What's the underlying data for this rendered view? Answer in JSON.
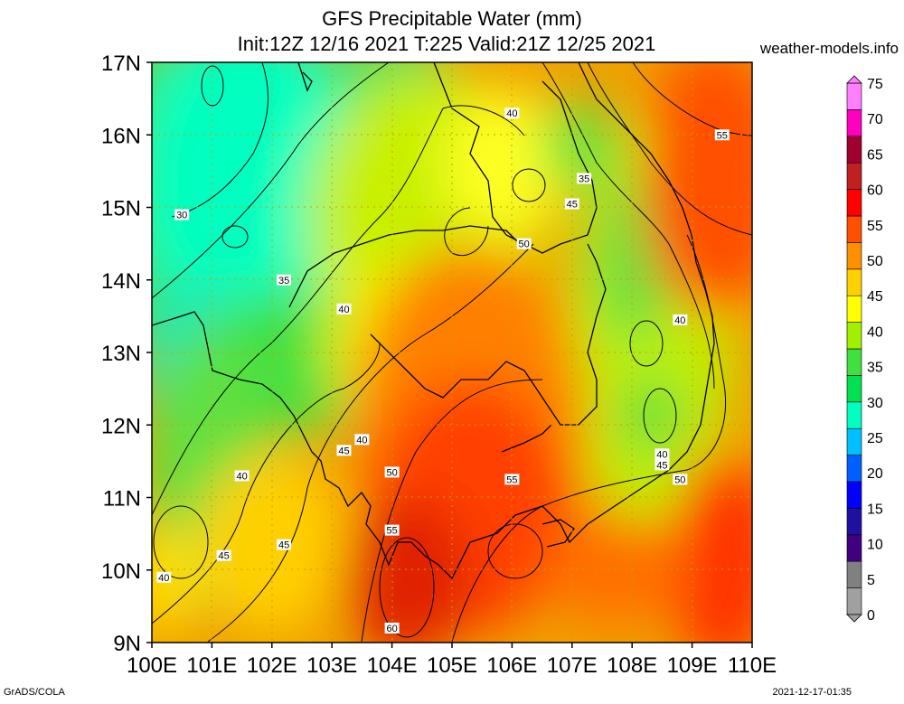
{
  "title": "GFS Precipitable Water (mm)",
  "subtitle": "Init:12Z 12/16 2021 T:225 Valid:21Z 12/25 2021",
  "source": "weather-models.info",
  "footer_left": "GrADS/COLA",
  "footer_right": "2021-12-17-01:35",
  "chart_data": {
    "type": "heatmap",
    "title": "GFS Precipitable Water (mm)",
    "x_ticks": [
      "100E",
      "101E",
      "102E",
      "103E",
      "104E",
      "105E",
      "106E",
      "107E",
      "108E",
      "109E",
      "110E"
    ],
    "y_ticks": [
      "9N",
      "10N",
      "11N",
      "12N",
      "13N",
      "14N",
      "15N",
      "16N",
      "17N"
    ],
    "xlim": [
      100,
      110
    ],
    "ylim": [
      9,
      17
    ],
    "colorbar": {
      "ticks": [
        0,
        5,
        10,
        15,
        20,
        25,
        30,
        35,
        40,
        45,
        50,
        55,
        60,
        65,
        70,
        75
      ],
      "colors": [
        "#a0a0a0",
        "#808080",
        "#400080",
        "#2010a0",
        "#0000ff",
        "#0060ff",
        "#00c0ff",
        "#00ffc0",
        "#00e050",
        "#40e040",
        "#a0f000",
        "#ffff00",
        "#ffd000",
        "#ff9000",
        "#ff5000",
        "#ff0000",
        "#c02020",
        "#a00030",
        "#ff00c0",
        "#ff80ff"
      ]
    },
    "contour_labels": [
      {
        "v": "40",
        "lon": 106.0,
        "lat": 16.3
      },
      {
        "v": "55",
        "lon": 109.5,
        "lat": 16.0
      },
      {
        "v": "35",
        "lon": 107.2,
        "lat": 15.4
      },
      {
        "v": "45",
        "lon": 107.0,
        "lat": 15.05
      },
      {
        "v": "30",
        "lon": 100.5,
        "lat": 14.9
      },
      {
        "v": "50",
        "lon": 106.2,
        "lat": 14.5
      },
      {
        "v": "35",
        "lon": 102.2,
        "lat": 14.0
      },
      {
        "v": "40",
        "lon": 103.2,
        "lat": 13.6
      },
      {
        "v": "40",
        "lon": 108.8,
        "lat": 13.45
      },
      {
        "v": "40",
        "lon": 103.5,
        "lat": 11.8
      },
      {
        "v": "45",
        "lon": 103.2,
        "lat": 11.65
      },
      {
        "v": "40",
        "lon": 108.5,
        "lat": 11.6
      },
      {
        "v": "45",
        "lon": 108.5,
        "lat": 11.45
      },
      {
        "v": "50",
        "lon": 104.0,
        "lat": 11.35
      },
      {
        "v": "50",
        "lon": 108.8,
        "lat": 11.25
      },
      {
        "v": "40",
        "lon": 101.5,
        "lat": 11.3
      },
      {
        "v": "55",
        "lon": 106.0,
        "lat": 11.25
      },
      {
        "v": "55",
        "lon": 104.0,
        "lat": 10.55
      },
      {
        "v": "45",
        "lon": 101.2,
        "lat": 10.2
      },
      {
        "v": "45",
        "lon": 102.2,
        "lat": 10.35
      },
      {
        "v": "40",
        "lon": 100.2,
        "lat": 9.9
      },
      {
        "v": "60",
        "lon": 104.0,
        "lat": 9.2
      }
    ]
  }
}
